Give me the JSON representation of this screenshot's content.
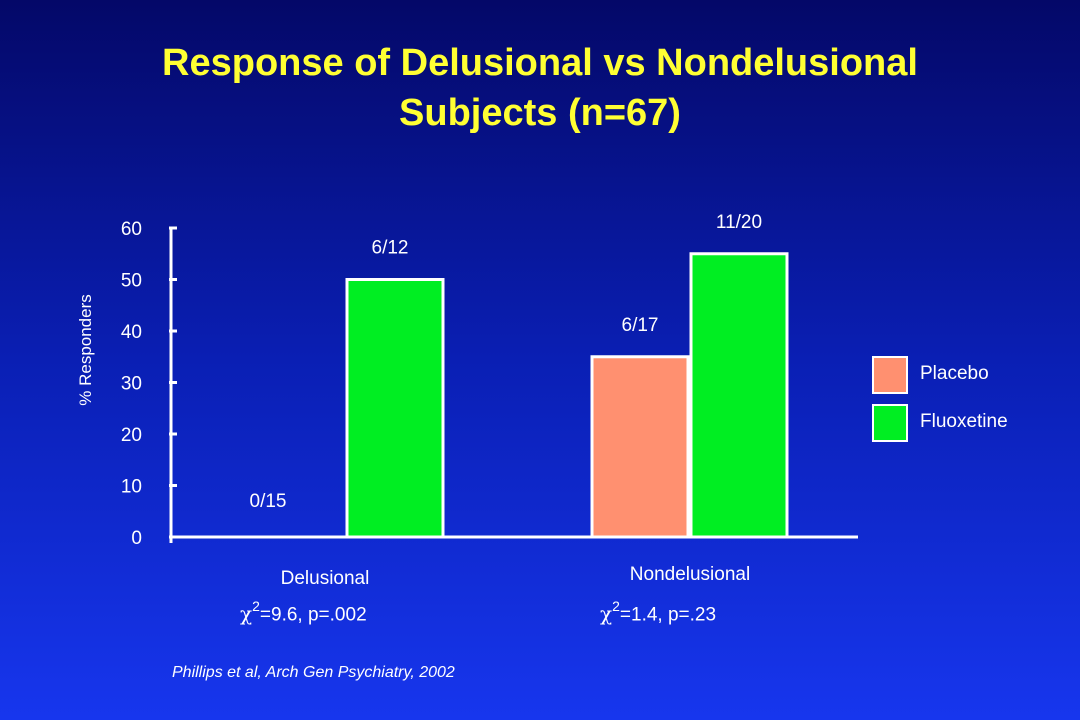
{
  "title_lines": [
    "Response of Delusional vs Nondelusional",
    "Subjects (n=67)"
  ],
  "stats": [
    {
      "symbol": "χ",
      "power": "2",
      "text": "=9.6, p=.002"
    },
    {
      "symbol": "χ",
      "power": "2",
      "text": "=1.4, p=.23"
    }
  ],
  "citation": "Phillips et al, Arch Gen Psychiatry, 2002",
  "colors": {
    "placebo": "#ff9070",
    "fluoxetine": "#00ee22",
    "title": "#ffff33",
    "text": "#ffffff"
  },
  "legend": [
    {
      "label": "Placebo",
      "color": "#ff9070"
    },
    {
      "label": "Fluoxetine",
      "color": "#00ee22"
    }
  ],
  "chart_data": {
    "type": "bar",
    "title": "",
    "ylabel": "% Responders",
    "xlabel": "",
    "ylim": [
      0,
      60
    ],
    "yticks": [
      0,
      10,
      20,
      30,
      40,
      50,
      60
    ],
    "categories": [
      "Delusional",
      "Nondelusional"
    ],
    "series": [
      {
        "name": "Placebo",
        "values": [
          0,
          35
        ],
        "labels": [
          "0/15",
          "6/17"
        ]
      },
      {
        "name": "Fluoxetine",
        "values": [
          50,
          55
        ],
        "labels": [
          "6/12",
          "11/20"
        ]
      }
    ],
    "legend_position": "right"
  }
}
